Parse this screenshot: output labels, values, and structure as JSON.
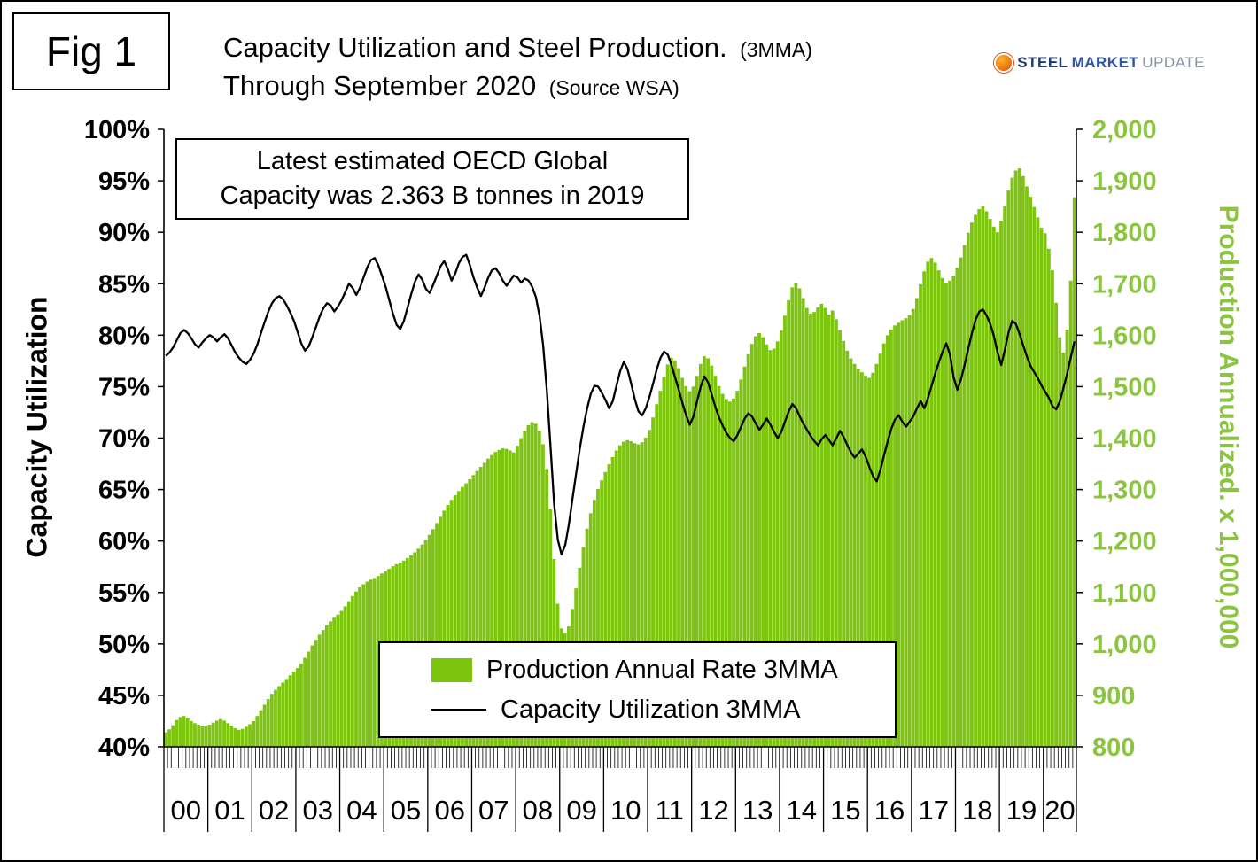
{
  "figure": {
    "label": "Fig 1"
  },
  "header": {
    "title": "Capacity Utilization and Steel Production.",
    "title_suffix": "(3MMA)",
    "subtitle": "Through September 2020",
    "subtitle_suffix": "(Source WSA)"
  },
  "logo": {
    "part1": "STEEL",
    "part2": "MARKET",
    "part3": "UPDATE"
  },
  "annotation": {
    "line1": "Latest estimated OECD Global",
    "line2": "Capacity was 2.363 B tonnes in 2019"
  },
  "legend": {
    "bar_label": "Production Annual Rate 3MMA",
    "line_label": "Capacity Utilization 3MMA"
  },
  "colors": {
    "bar_green": "#7cc40e",
    "axis_green": "#8bc53f",
    "line_black": "#000000"
  },
  "chart_data": {
    "type": "bar",
    "title": "Capacity Utilization and Steel Production. (3MMA) Through September 2020 (Source WSA)",
    "frequency": "monthly",
    "x_start": "2000-01",
    "x_end": "2020-09",
    "grid": false,
    "legend_position": "inside-bottom-center",
    "year_labels": [
      "00",
      "01",
      "02",
      "03",
      "04",
      "05",
      "06",
      "07",
      "08",
      "09",
      "10",
      "11",
      "12",
      "13",
      "14",
      "15",
      "16",
      "17",
      "18",
      "19",
      "20"
    ],
    "year_month_counts": [
      12,
      12,
      12,
      12,
      12,
      12,
      12,
      12,
      12,
      12,
      12,
      12,
      12,
      12,
      12,
      12,
      12,
      12,
      12,
      12,
      9
    ],
    "left_axis": {
      "label": "Capacity Utilization",
      "min": 40,
      "max": 100,
      "ticks": [
        "100%",
        "95%",
        "90%",
        "85%",
        "80%",
        "75%",
        "70%",
        "65%",
        "60%",
        "55%",
        "50%",
        "45%",
        "40%"
      ]
    },
    "right_axis": {
      "label": "Production Annualized. x 1,000,000",
      "min": 800,
      "max": 2000,
      "ticks": [
        "2,000",
        "1,900",
        "1,800",
        "1,700",
        "1,600",
        "1,500",
        "1,400",
        "1,300",
        "1,200",
        "1,100",
        "1,000",
        "900",
        "800"
      ]
    },
    "series": [
      {
        "name": "Production Annual Rate 3MMA",
        "type": "bar",
        "axis": "right",
        "color": "#7cc40e",
        "values": [
          828,
          834,
          842,
          852,
          858,
          860,
          856,
          850,
          846,
          843,
          841,
          840,
          843,
          847,
          851,
          854,
          851,
          846,
          841,
          836,
          833,
          835,
          839,
          844,
          850,
          860,
          871,
          882,
          893,
          903,
          911,
          918,
          925,
          932,
          939,
          946,
          953,
          962,
          973,
          985,
          997,
          1008,
          1018,
          1027,
          1036,
          1044,
          1051,
          1057,
          1064,
          1073,
          1083,
          1093,
          1102,
          1110,
          1116,
          1121,
          1125,
          1128,
          1132,
          1137,
          1141,
          1146,
          1151,
          1155,
          1158,
          1162,
          1167,
          1172,
          1178,
          1185,
          1193,
          1202,
          1212,
          1223,
          1235,
          1247,
          1259,
          1270,
          1280,
          1289,
          1297,
          1305,
          1312,
          1320,
          1328,
          1336,
          1344,
          1352,
          1360,
          1367,
          1373,
          1377,
          1380,
          1379,
          1376,
          1372,
          1385,
          1400,
          1414,
          1425,
          1431,
          1428,
          1414,
          1388,
          1340,
          1262,
          1165,
          1078,
          1030,
          1021,
          1034,
          1068,
          1108,
          1148,
          1188,
          1224,
          1254,
          1280,
          1301,
          1318,
          1334,
          1349,
          1363,
          1376,
          1386,
          1393,
          1396,
          1394,
          1390,
          1388,
          1392,
          1401,
          1416,
          1440,
          1466,
          1492,
          1519,
          1543,
          1556,
          1551,
          1536,
          1517,
          1501,
          1491,
          1500,
          1521,
          1544,
          1559,
          1555,
          1541,
          1521,
          1501,
          1486,
          1476,
          1471,
          1477,
          1492,
          1514,
          1539,
          1563,
          1583,
          1598,
          1604,
          1596,
          1582,
          1571,
          1574,
          1588,
          1609,
          1638,
          1668,
          1693,
          1701,
          1691,
          1672,
          1653,
          1642,
          1645,
          1654,
          1661,
          1653,
          1640,
          1648,
          1631,
          1610,
          1589,
          1570,
          1555,
          1544,
          1535,
          1528,
          1521,
          1517,
          1527,
          1544,
          1564,
          1584,
          1600,
          1611,
          1619,
          1624,
          1629,
          1633,
          1639,
          1651,
          1672,
          1699,
          1724,
          1743,
          1750,
          1741,
          1726,
          1711,
          1701,
          1706,
          1716,
          1731,
          1751,
          1775,
          1799,
          1819,
          1834,
          1845,
          1851,
          1841,
          1826,
          1811,
          1800,
          1821,
          1851,
          1881,
          1906,
          1920,
          1924,
          1909,
          1889,
          1869,
          1849,
          1829,
          1809,
          1798,
          1768,
          1726,
          1663,
          1596,
          1566,
          1611,
          1706,
          1868
        ]
      },
      {
        "name": "Capacity Utilization 3MMA",
        "type": "line",
        "axis": "left",
        "color": "#000000",
        "values": [
          78.0,
          78.3,
          78.8,
          79.5,
          80.2,
          80.5,
          80.2,
          79.7,
          79.1,
          78.8,
          79.3,
          79.7,
          80.0,
          79.8,
          79.4,
          79.8,
          80.1,
          79.7,
          79.0,
          78.3,
          77.8,
          77.4,
          77.2,
          77.6,
          78.2,
          79.1,
          80.2,
          81.3,
          82.3,
          83.1,
          83.6,
          83.8,
          83.5,
          82.9,
          82.2,
          81.4,
          80.3,
          79.2,
          78.5,
          78.9,
          79.8,
          80.8,
          81.8,
          82.6,
          83.1,
          82.9,
          82.3,
          82.8,
          83.4,
          84.2,
          85.0,
          84.6,
          83.9,
          84.6,
          85.6,
          86.6,
          87.3,
          87.5,
          86.8,
          85.8,
          84.7,
          83.4,
          82.1,
          81.0,
          80.6,
          81.4,
          82.7,
          84.0,
          85.2,
          85.9,
          85.4,
          84.5,
          84.1,
          84.9,
          85.8,
          86.7,
          87.2,
          86.4,
          85.3,
          86.0,
          87.0,
          87.6,
          87.8,
          86.8,
          85.6,
          84.6,
          83.8,
          84.6,
          85.6,
          86.3,
          86.5,
          86.0,
          85.3,
          84.8,
          85.3,
          85.8,
          85.6,
          85.1,
          85.5,
          85.3,
          84.7,
          83.7,
          81.9,
          79.0,
          74.6,
          69.2,
          63.6,
          60.1,
          58.7,
          59.6,
          61.6,
          64.1,
          66.6,
          69.0,
          71.1,
          72.9,
          74.3,
          75.1,
          75.0,
          74.4,
          73.7,
          72.9,
          73.6,
          75.1,
          76.5,
          77.4,
          76.7,
          75.3,
          73.8,
          72.6,
          72.2,
          72.9,
          74.0,
          75.3,
          76.7,
          77.8,
          78.4,
          78.1,
          77.1,
          75.9,
          74.7,
          73.4,
          72.2,
          71.3,
          72.1,
          73.6,
          75.0,
          76.0,
          75.4,
          74.2,
          73.0,
          72.0,
          71.2,
          70.5,
          70.0,
          69.7,
          70.3,
          71.1,
          71.9,
          72.4,
          72.1,
          71.4,
          70.8,
          71.3,
          71.9,
          71.3,
          70.6,
          70.0,
          70.6,
          71.6,
          72.6,
          73.3,
          72.9,
          72.1,
          71.4,
          70.8,
          70.2,
          69.7,
          69.3,
          69.9,
          70.3,
          69.8,
          69.3,
          70.0,
          70.7,
          70.1,
          69.3,
          68.6,
          68.1,
          68.5,
          68.9,
          68.2,
          67.2,
          66.3,
          65.8,
          66.9,
          68.3,
          69.7,
          70.9,
          71.8,
          72.2,
          71.6,
          71.1,
          71.6,
          72.1,
          72.9,
          73.6,
          72.9,
          73.9,
          75.1,
          76.3,
          77.4,
          78.4,
          79.2,
          78.1,
          75.9,
          74.7,
          75.7,
          77.1,
          78.7,
          80.2,
          81.5,
          82.3,
          82.5,
          81.9,
          81.1,
          79.9,
          78.3,
          77.1,
          78.6,
          80.3,
          81.4,
          81.1,
          80.1,
          79.0,
          77.9,
          77.0,
          76.4,
          75.8,
          75.1,
          74.5,
          73.9,
          73.1,
          72.8,
          73.6,
          74.9,
          76.3,
          77.9,
          79.4
        ]
      }
    ]
  }
}
